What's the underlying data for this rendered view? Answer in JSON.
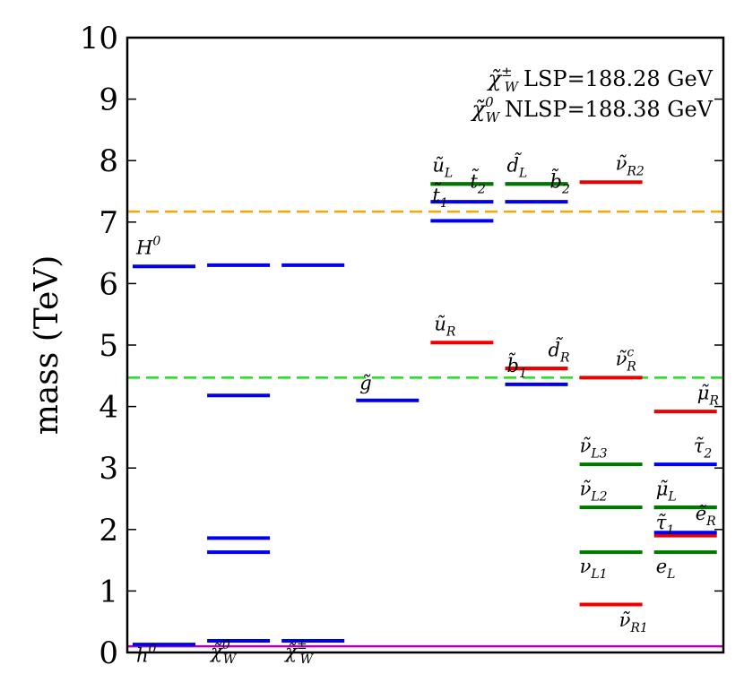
{
  "chart_data": {
    "type": "spectrum",
    "title": "",
    "ylabel": "mass (TeV)",
    "ylim": [
      0,
      10
    ],
    "yticks": [
      "0",
      "1",
      "2",
      "3",
      "4",
      "5",
      "6",
      "7",
      "8",
      "9",
      "10"
    ],
    "annotations": [
      {
        "sym": "χ̃",
        "sub": "W",
        "sup": "±",
        "text": "LSP=188.28 GeV"
      },
      {
        "sym": "χ̃",
        "sub": "W",
        "sup": "0",
        "text": "NLSP=188.38 GeV"
      }
    ],
    "reference_lines": [
      {
        "value": 7.17,
        "color": "#ffa500"
      },
      {
        "value": 4.47,
        "color": "#22dd22"
      },
      {
        "value": 0.1,
        "color": "#b000b0"
      }
    ],
    "colors": {
      "blue": "#0000ee",
      "green": "#007700",
      "red": "#ee0000"
    },
    "levels": [
      {
        "col": 0,
        "value": 0.13,
        "color": "blue",
        "label": {
          "base": "h",
          "sup": "0",
          "sub": "",
          "dy": -0.28
        }
      },
      {
        "col": 0,
        "value": 6.28,
        "color": "blue",
        "label": {
          "base": "H",
          "sup": "0",
          "sub": "",
          "dy": 0.2
        }
      },
      {
        "col": 1,
        "value": 0.19,
        "color": "blue",
        "label": {
          "base": "χ̃",
          "sup": "0",
          "sub": "W",
          "dy": -0.28
        }
      },
      {
        "col": 1,
        "value": 1.63,
        "color": "blue"
      },
      {
        "col": 1,
        "value": 1.86,
        "color": "blue"
      },
      {
        "col": 1,
        "value": 4.18,
        "color": "blue"
      },
      {
        "col": 1,
        "value": 6.3,
        "color": "blue"
      },
      {
        "col": 2,
        "value": 0.19,
        "color": "blue",
        "label": {
          "base": "χ̃",
          "sup": "±",
          "sub": "W",
          "dy": -0.28
        }
      },
      {
        "col": 2,
        "value": 6.3,
        "color": "blue"
      },
      {
        "col": 3,
        "value": 4.1,
        "color": "blue",
        "label": {
          "base": "g̃",
          "sup": "",
          "sub": "",
          "dy": 0.18
        }
      },
      {
        "col": 4,
        "value": 5.04,
        "color": "red",
        "label": {
          "base": "ũ",
          "sup": "",
          "sub": "R",
          "dy": 0.2
        }
      },
      {
        "col": 4,
        "value": 7.02,
        "color": "blue"
      },
      {
        "col": 4,
        "value": 7.33,
        "color": "blue",
        "label": {
          "base": "t̃",
          "sup": "",
          "sub": "1",
          "dy": 0.0,
          "dx": -2
        }
      },
      {
        "col": 4,
        "value": 7.62,
        "color": "green",
        "label": {
          "base": "ũ",
          "sup": "",
          "sub": "L",
          "dy": 0.2,
          "dx": -2
        }
      },
      {
        "col": 4,
        "value": 7.62,
        "color": "green",
        "label": {
          "base": "t̃",
          "sup": "",
          "sub": "2",
          "dy": -0.06,
          "dx": 40
        }
      },
      {
        "col": 5,
        "value": 4.36,
        "color": "blue"
      },
      {
        "col": 5,
        "value": 4.62,
        "color": "red",
        "label": {
          "base": "b̃",
          "sup": "",
          "sub": "1",
          "dy": -0.06,
          "dx": -2
        }
      },
      {
        "col": 5,
        "value": 4.62,
        "color": "red",
        "label": {
          "base": "d̃",
          "sup": "",
          "sub": "R",
          "dy": 0.2,
          "dx": 44
        }
      },
      {
        "col": 5,
        "value": 7.33,
        "color": "blue"
      },
      {
        "col": 5,
        "value": 7.62,
        "color": "green",
        "label": {
          "base": "d̃",
          "sup": "",
          "sub": "L",
          "dy": 0.2,
          "dx": -2
        }
      },
      {
        "col": 5,
        "value": 7.62,
        "color": "green",
        "label": {
          "base": "b̃",
          "sup": "",
          "sub": "2",
          "dy": -0.06,
          "dx": 46
        }
      },
      {
        "col": 6,
        "value": 0.78,
        "color": "red",
        "label": {
          "base": "ν̃",
          "sup": "",
          "sub": "R1",
          "dy": -0.36,
          "dx": 40
        }
      },
      {
        "col": 6,
        "value": 1.63,
        "color": "green",
        "label": {
          "base": "ν",
          "sup": "",
          "sub": "L1",
          "dy": -0.33,
          "dx": -4
        }
      },
      {
        "col": 6,
        "value": 2.36,
        "color": "green",
        "label": {
          "base": "ν̃",
          "sup": "",
          "sub": "L2",
          "dy": 0.2,
          "dx": -4
        }
      },
      {
        "col": 6,
        "value": 3.06,
        "color": "green",
        "label": {
          "base": "ν̃",
          "sup": "",
          "sub": "L3",
          "dy": 0.2,
          "dx": -4
        }
      },
      {
        "col": 6,
        "value": 4.47,
        "color": "red",
        "label": {
          "base": "ν̃",
          "sup": "c",
          "sub": "R",
          "dy": 0.2,
          "dx": 36
        }
      },
      {
        "col": 6,
        "value": 7.65,
        "color": "red",
        "label": {
          "base": "ν̃",
          "sup": "",
          "sub": "R2",
          "dy": 0.2,
          "dx": 36
        }
      },
      {
        "col": 7,
        "value": 1.63,
        "color": "green",
        "label": {
          "base": "e",
          "sup": "",
          "sub": "L",
          "dy": -0.33,
          "dx": -2
        }
      },
      {
        "col": 7,
        "value": 1.9,
        "color": "red"
      },
      {
        "col": 7,
        "value": 1.95,
        "color": "blue",
        "label": {
          "base": "τ̃",
          "sup": "",
          "sub": "1",
          "dy": 0.06,
          "dx": -2
        }
      },
      {
        "col": 7,
        "value": 2.36,
        "color": "green",
        "label": {
          "base": "μ̃",
          "sup": "",
          "sub": "L",
          "dy": 0.2,
          "dx": -2
        }
      },
      {
        "col": 7,
        "value": 2.36,
        "color": "green",
        "label": {
          "base": "ẽ",
          "sup": "",
          "sub": "R",
          "dy": -0.2,
          "dx": 42
        }
      },
      {
        "col": 7,
        "value": 3.06,
        "color": "blue",
        "label": {
          "base": "τ̃",
          "sup": "",
          "sub": "2",
          "dy": 0.2,
          "dx": 40
        }
      },
      {
        "col": 7,
        "value": 3.92,
        "color": "red",
        "label": {
          "base": "μ̃",
          "sup": "",
          "sub": "R",
          "dy": 0.2,
          "dx": 44
        }
      }
    ]
  }
}
